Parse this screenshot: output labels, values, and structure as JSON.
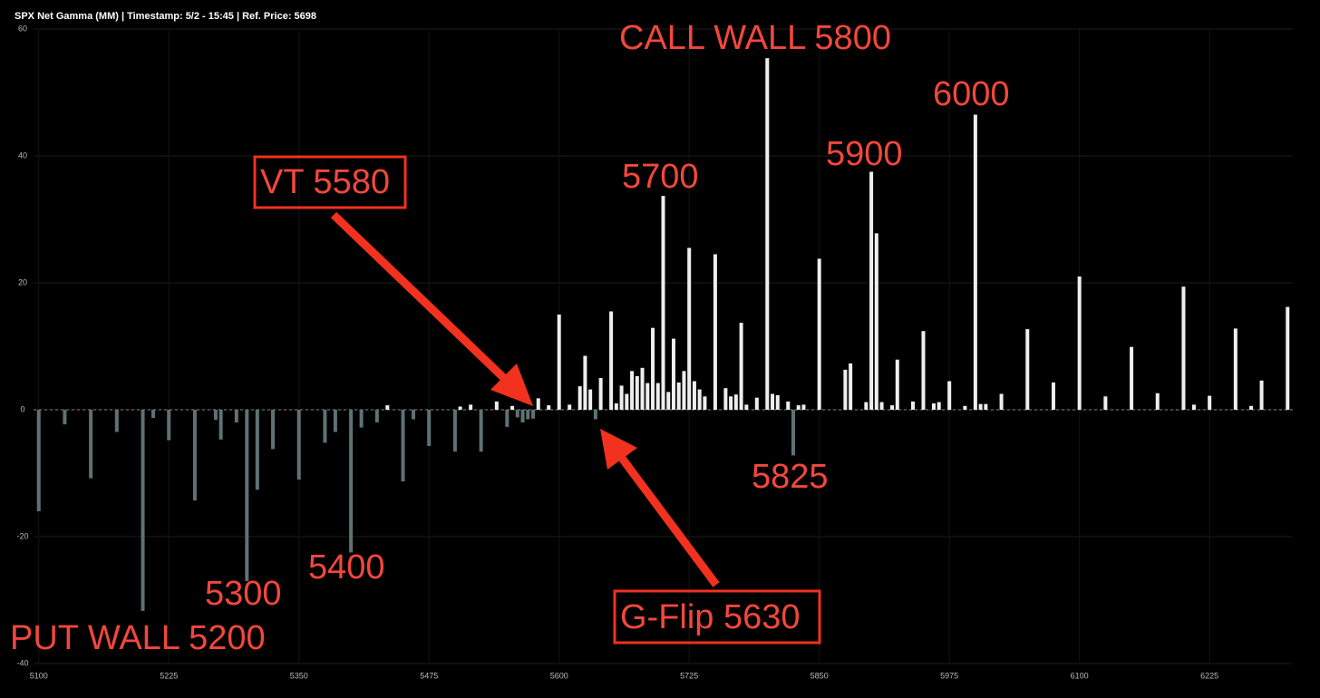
{
  "chart_data": {
    "type": "bar",
    "title": "SPX Net Gamma (MM) | Timestamp: 5/2 - 15:45  | Ref. Price: 5698",
    "x": [
      5100,
      5125,
      5150,
      5175,
      5200,
      5210,
      5225,
      5250,
      5270,
      5275,
      5290,
      5300,
      5310,
      5325,
      5350,
      5375,
      5385,
      5400,
      5410,
      5425,
      5435,
      5450,
      5460,
      5475,
      5500,
      5505,
      5515,
      5525,
      5540,
      5550,
      5555,
      5560,
      5565,
      5570,
      5575,
      5580,
      5590,
      5600,
      5610,
      5620,
      5625,
      5630,
      5635,
      5640,
      5650,
      5655,
      5660,
      5665,
      5670,
      5675,
      5680,
      5685,
      5690,
      5695,
      5700,
      5705,
      5710,
      5715,
      5720,
      5725,
      5730,
      5735,
      5740,
      5750,
      5760,
      5765,
      5770,
      5775,
      5780,
      5790,
      5800,
      5805,
      5810,
      5820,
      5825,
      5830,
      5835,
      5850,
      5875,
      5880,
      5895,
      5900,
      5905,
      5910,
      5920,
      5925,
      5940,
      5950,
      5960,
      5965,
      5975,
      5990,
      6000,
      6005,
      6010,
      6025,
      6050,
      6075,
      6100,
      6125,
      6150,
      6175,
      6200,
      6210,
      6225,
      6250,
      6265,
      6275,
      6300
    ],
    "values": [
      -16,
      -2.3,
      -10.8,
      -3.5,
      -31.7,
      -1.3,
      -4.8,
      -14.3,
      -1.6,
      -4.7,
      -2,
      -27,
      -12.6,
      -6.2,
      -11,
      -5.2,
      -3.5,
      -22.5,
      -2.8,
      -2,
      0.7,
      -11.3,
      -1.5,
      -5.7,
      -6.6,
      0.5,
      0.8,
      -6.6,
      1.3,
      -2.7,
      0.6,
      -1.2,
      -2,
      -1.5,
      -1.4,
      1.8,
      0.7,
      15,
      0.8,
      3.7,
      8.5,
      3.2,
      -1.5,
      5,
      15.5,
      1,
      3.8,
      2.5,
      6.1,
      5.3,
      6.6,
      4.2,
      12.9,
      4.2,
      33.7,
      2.8,
      11.2,
      4.3,
      6.1,
      25.5,
      4.5,
      3.2,
      2.1,
      24.5,
      3.4,
      2.1,
      2.4,
      13.7,
      0.8,
      1.9,
      55.4,
      2.5,
      2.3,
      1.3,
      -7.2,
      0.7,
      0.8,
      23.8,
      6.3,
      7.3,
      1.2,
      37.5,
      27.8,
      1.2,
      0.7,
      7.9,
      1.3,
      12.4,
      1,
      1.2,
      4.5,
      0.6,
      46.5,
      0.9,
      0.9,
      2.5,
      12.7,
      4.3,
      21,
      2.1,
      9.9,
      2.6,
      19.4,
      0.8,
      2.2,
      12.8,
      0.6,
      4.6,
      16.2
    ],
    "color": "#eeeeee",
    "negative_color": "#5e7276",
    "xlim": [
      5095,
      6305
    ],
    "xticks": [
      5100,
      5225,
      5350,
      5475,
      5600,
      5725,
      5850,
      5975,
      6100,
      6225
    ],
    "ylim": [
      -40,
      60
    ],
    "yticks": [
      60,
      40,
      20,
      0,
      -20,
      -40
    ],
    "grid": true,
    "annotations": [
      "CALL WALL 5800",
      "6000",
      "5900",
      "5700",
      "VT 5580",
      "5825",
      "5400",
      "5300",
      "PUT WALL 5200",
      "G-Flip 5630"
    ]
  }
}
